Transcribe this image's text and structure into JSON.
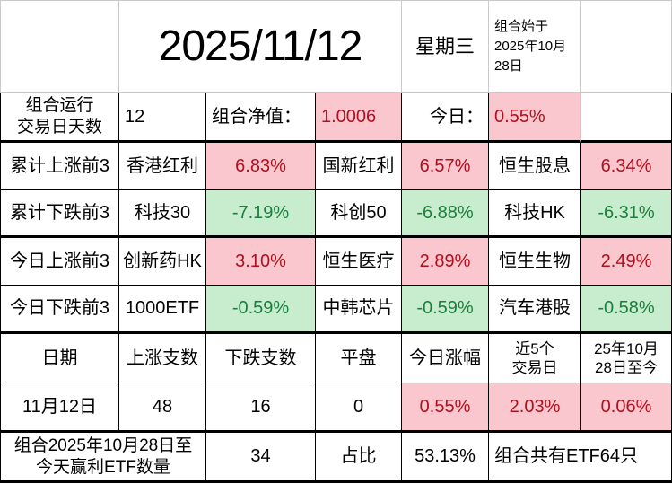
{
  "colors": {
    "up_bg": "#FBC7CE",
    "up_text": "#B0101E",
    "down_bg": "#C8EDCE",
    "down_text": "#1B7E3C",
    "grid_line": "#000000",
    "light_grid_line": "#C9C9C9"
  },
  "title_row": {
    "date": "2025/11/12",
    "weekday": "星期三",
    "start_note": "组合始于\n2025年10月\n28日"
  },
  "summary": {
    "label": "组合运行\n交易日天数",
    "days": "12",
    "nav_label": "组合净值：",
    "nav_value": "1.0006",
    "today_label": "今日：",
    "today_value": "0.55%"
  },
  "rank_rows": [
    {
      "label": "累计上涨前3",
      "items": [
        {
          "name": "香港红利",
          "value": "6.83%"
        },
        {
          "name": "国新红利",
          "value": "6.57%"
        },
        {
          "name": "恒生股息",
          "value": "6.34%"
        }
      ]
    },
    {
      "label": "累计下跌前3",
      "items": [
        {
          "name": "科技30",
          "value": "-7.19%"
        },
        {
          "name": "科创50",
          "value": "-6.88%"
        },
        {
          "name": "科技HK",
          "value": "-6.31%"
        }
      ]
    },
    {
      "label": "今日上涨前3",
      "items": [
        {
          "name": "创新药HK",
          "value": "3.10%"
        },
        {
          "name": "恒生医疗",
          "value": "2.89%"
        },
        {
          "name": "恒生生物",
          "value": "2.49%"
        }
      ]
    },
    {
      "label": "今日下跌前3",
      "items": [
        {
          "name": "1000ETF",
          "value": "-0.59%"
        },
        {
          "name": "中韩芯片",
          "value": "-0.59%"
        },
        {
          "name": "汽车港股",
          "value": "-0.58%"
        }
      ]
    }
  ],
  "stats": {
    "headers": [
      "日期",
      "上涨支数",
      "下跌支数",
      "平盘",
      "今日涨幅",
      "近5个\n交易日",
      "25年10月\n28日至今"
    ],
    "row": [
      "11月12日",
      "48",
      "16",
      "0",
      "0.55%",
      "2.03%",
      "0.06%"
    ]
  },
  "footer": {
    "label": "组合2025年10月28日至\n今天赢利ETF数量",
    "win_count": "34",
    "ratio_label": "占比",
    "ratio_value": "53.13%",
    "total_note": "组合共有ETF64只"
  }
}
